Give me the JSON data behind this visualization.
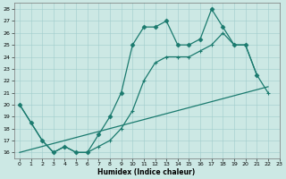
{
  "bg_color": "#cce8e4",
  "grid_color": "#a0cccc",
  "line_color": "#1a7a6e",
  "xlabel": "Humidex (Indice chaleur)",
  "xlim": [
    -0.5,
    23
  ],
  "ylim": [
    15.5,
    28.5
  ],
  "yticks": [
    16,
    17,
    18,
    19,
    20,
    21,
    22,
    23,
    24,
    25,
    26,
    27,
    28
  ],
  "xticks": [
    0,
    1,
    2,
    3,
    4,
    5,
    6,
    7,
    8,
    9,
    10,
    11,
    12,
    13,
    14,
    15,
    16,
    17,
    18,
    19,
    20,
    21,
    22,
    23
  ],
  "line1_x": [
    0,
    1,
    2,
    3,
    4,
    5,
    6,
    7,
    8,
    9,
    10,
    11,
    12,
    13,
    14,
    15,
    16,
    17,
    18,
    19,
    20,
    21
  ],
  "line1_y": [
    20,
    18.5,
    17,
    16,
    16.5,
    16,
    16,
    17.5,
    19,
    21,
    25,
    26.5,
    26.5,
    27,
    25,
    25,
    25.5,
    28,
    26.5,
    25,
    25,
    22.5
  ],
  "line2_x": [
    0,
    2,
    3,
    4,
    5,
    6,
    7,
    8,
    9,
    10,
    11,
    12,
    13,
    14,
    15,
    16,
    17,
    18,
    19,
    20,
    21,
    22
  ],
  "line2_y": [
    20,
    17,
    16,
    16.5,
    16,
    16,
    16.5,
    17,
    18,
    19.5,
    22,
    23.5,
    24,
    24,
    24,
    24.5,
    25,
    26,
    25,
    25,
    22.5,
    21
  ],
  "line3_x": [
    0,
    22
  ],
  "line3_y": [
    16,
    21.5
  ],
  "marker1": "D",
  "marker2": "+",
  "lw": 0.9,
  "ms1": 2.5,
  "ms2": 3.5
}
